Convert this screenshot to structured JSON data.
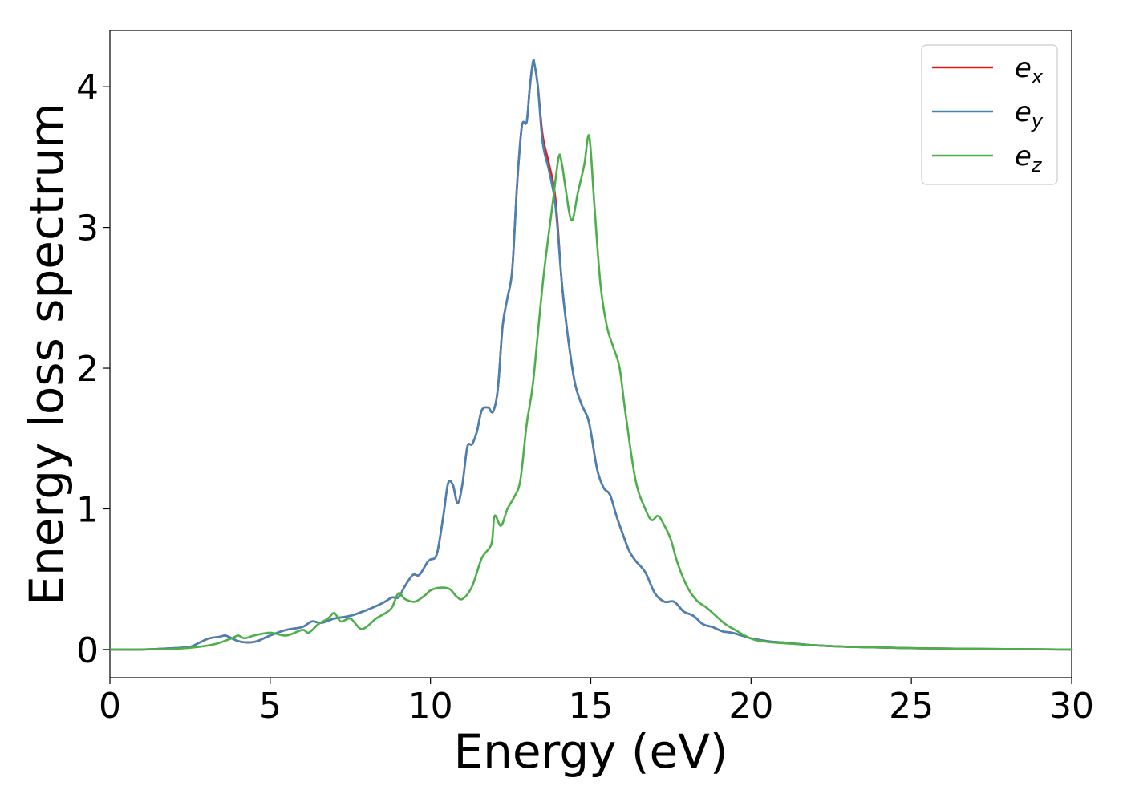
{
  "chart_data": {
    "type": "line",
    "xlabel": "Energy (eV)",
    "ylabel": "Energy loss spectrum",
    "xlim": [
      0,
      30
    ],
    "ylim": [
      -0.2,
      4.4
    ],
    "xticks": [
      0,
      5,
      10,
      15,
      20,
      25,
      30
    ],
    "yticks": [
      0,
      1,
      2,
      3,
      4
    ],
    "grid": false,
    "legend_position": "top-right",
    "series": [
      {
        "name": "e_x",
        "label_base": "e",
        "label_sub": "x",
        "color": "#e41a1c",
        "x": [
          0,
          1,
          2,
          2.5,
          2.8,
          3.1,
          3.4,
          3.6,
          3.8,
          4.0,
          4.3,
          4.6,
          5.0,
          5.5,
          6.0,
          6.3,
          6.6,
          7.0,
          7.5,
          8.0,
          8.5,
          8.8,
          9.0,
          9.2,
          9.45,
          9.65,
          9.9,
          10.0,
          10.2,
          10.4,
          10.55,
          10.7,
          10.85,
          11.0,
          11.15,
          11.3,
          11.45,
          11.6,
          11.8,
          11.95,
          12.1,
          12.25,
          12.4,
          12.55,
          12.7,
          12.85,
          13.0,
          13.1,
          13.2,
          13.25,
          13.35,
          13.5,
          13.7,
          13.9,
          14.1,
          14.3,
          14.5,
          14.7,
          14.9,
          15.0,
          15.2,
          15.4,
          15.6,
          15.8,
          16.0,
          16.2,
          16.4,
          16.7,
          17.0,
          17.3,
          17.6,
          17.9,
          18.2,
          18.5,
          18.8,
          19.1,
          19.4,
          19.7,
          20.0,
          20.5,
          21.0,
          22.0,
          23.0,
          24.0,
          25.0,
          27.0,
          30.0
        ],
        "values": [
          0,
          0,
          0.01,
          0.02,
          0.05,
          0.08,
          0.09,
          0.1,
          0.08,
          0.06,
          0.05,
          0.06,
          0.1,
          0.14,
          0.16,
          0.2,
          0.19,
          0.22,
          0.24,
          0.28,
          0.33,
          0.37,
          0.37,
          0.45,
          0.53,
          0.53,
          0.62,
          0.64,
          0.68,
          0.95,
          1.18,
          1.17,
          1.04,
          1.18,
          1.44,
          1.46,
          1.55,
          1.7,
          1.72,
          1.69,
          1.85,
          2.3,
          2.5,
          2.7,
          3.3,
          3.72,
          3.75,
          4.0,
          4.18,
          4.15,
          4.0,
          3.65,
          3.45,
          3.2,
          2.6,
          2.2,
          1.9,
          1.75,
          1.65,
          1.55,
          1.28,
          1.15,
          1.1,
          0.95,
          0.82,
          0.7,
          0.63,
          0.55,
          0.4,
          0.34,
          0.34,
          0.27,
          0.24,
          0.18,
          0.16,
          0.13,
          0.12,
          0.1,
          0.08,
          0.06,
          0.05,
          0.03,
          0.02,
          0.015,
          0.01,
          0.005,
          0.0
        ]
      },
      {
        "name": "e_y",
        "label_base": "e",
        "label_sub": "y",
        "color": "#4682b4",
        "x": [
          0,
          1,
          2,
          2.5,
          2.8,
          3.1,
          3.4,
          3.6,
          3.8,
          4.0,
          4.3,
          4.6,
          5.0,
          5.5,
          6.0,
          6.3,
          6.6,
          7.0,
          7.5,
          8.0,
          8.5,
          8.8,
          9.0,
          9.2,
          9.45,
          9.65,
          9.9,
          10.0,
          10.2,
          10.4,
          10.55,
          10.7,
          10.85,
          11.0,
          11.15,
          11.3,
          11.45,
          11.6,
          11.8,
          11.95,
          12.1,
          12.25,
          12.4,
          12.55,
          12.7,
          12.85,
          13.0,
          13.1,
          13.2,
          13.25,
          13.35,
          13.5,
          13.7,
          13.9,
          14.1,
          14.3,
          14.5,
          14.7,
          14.9,
          15.0,
          15.2,
          15.4,
          15.6,
          15.8,
          16.0,
          16.2,
          16.4,
          16.7,
          17.0,
          17.3,
          17.6,
          17.9,
          18.2,
          18.5,
          18.8,
          19.1,
          19.4,
          19.7,
          20.0,
          20.5,
          21.0,
          22.0,
          23.0,
          24.0,
          25.0,
          27.0,
          30.0
        ],
        "values": [
          0,
          0,
          0.01,
          0.02,
          0.05,
          0.08,
          0.09,
          0.1,
          0.08,
          0.06,
          0.05,
          0.06,
          0.1,
          0.14,
          0.16,
          0.2,
          0.19,
          0.22,
          0.24,
          0.28,
          0.33,
          0.37,
          0.37,
          0.45,
          0.53,
          0.53,
          0.62,
          0.64,
          0.68,
          0.95,
          1.18,
          1.17,
          1.04,
          1.18,
          1.44,
          1.46,
          1.55,
          1.7,
          1.72,
          1.69,
          1.85,
          2.3,
          2.5,
          2.7,
          3.3,
          3.72,
          3.75,
          4.0,
          4.18,
          4.15,
          4.0,
          3.6,
          3.4,
          3.15,
          2.6,
          2.2,
          1.9,
          1.75,
          1.65,
          1.55,
          1.28,
          1.15,
          1.1,
          0.95,
          0.82,
          0.7,
          0.63,
          0.55,
          0.4,
          0.34,
          0.34,
          0.27,
          0.24,
          0.18,
          0.16,
          0.13,
          0.12,
          0.1,
          0.08,
          0.06,
          0.05,
          0.03,
          0.02,
          0.015,
          0.01,
          0.005,
          0.0
        ]
      },
      {
        "name": "e_z",
        "label_base": "e",
        "label_sub": "z",
        "color": "#4daf4a",
        "x": [
          0,
          1,
          2,
          2.8,
          3.3,
          3.8,
          4.0,
          4.2,
          4.5,
          5.0,
          5.5,
          6.0,
          6.2,
          6.5,
          6.8,
          7.0,
          7.2,
          7.5,
          7.8,
          8.0,
          8.3,
          8.6,
          8.8,
          9.0,
          9.2,
          9.5,
          9.8,
          10.0,
          10.3,
          10.6,
          10.8,
          11.0,
          11.3,
          11.6,
          11.9,
          12.0,
          12.2,
          12.4,
          12.6,
          12.8,
          13.0,
          13.2,
          13.5,
          13.8,
          14.0,
          14.1,
          14.2,
          14.4,
          14.6,
          14.8,
          14.95,
          15.1,
          15.3,
          15.5,
          15.7,
          15.9,
          16.1,
          16.4,
          16.7,
          16.9,
          17.1,
          17.3,
          17.5,
          17.7,
          18.0,
          18.3,
          18.6,
          18.9,
          19.2,
          19.5,
          19.8,
          20.1,
          20.5,
          21.0,
          22.0,
          23.0,
          24.0,
          25.0,
          27.0,
          30.0
        ],
        "values": [
          0,
          0,
          0.005,
          0.02,
          0.04,
          0.08,
          0.1,
          0.08,
          0.1,
          0.12,
          0.1,
          0.14,
          0.12,
          0.18,
          0.22,
          0.26,
          0.2,
          0.22,
          0.15,
          0.16,
          0.22,
          0.26,
          0.3,
          0.4,
          0.36,
          0.34,
          0.38,
          0.42,
          0.44,
          0.43,
          0.38,
          0.36,
          0.45,
          0.65,
          0.75,
          0.95,
          0.88,
          1.0,
          1.08,
          1.2,
          1.6,
          1.9,
          2.6,
          3.15,
          3.5,
          3.45,
          3.3,
          3.05,
          3.25,
          3.45,
          3.65,
          3.2,
          2.6,
          2.3,
          2.15,
          2.0,
          1.65,
          1.2,
          1.0,
          0.92,
          0.95,
          0.88,
          0.78,
          0.62,
          0.45,
          0.35,
          0.3,
          0.24,
          0.18,
          0.14,
          0.1,
          0.07,
          0.055,
          0.045,
          0.03,
          0.02,
          0.015,
          0.01,
          0.005,
          0.0
        ]
      }
    ]
  }
}
